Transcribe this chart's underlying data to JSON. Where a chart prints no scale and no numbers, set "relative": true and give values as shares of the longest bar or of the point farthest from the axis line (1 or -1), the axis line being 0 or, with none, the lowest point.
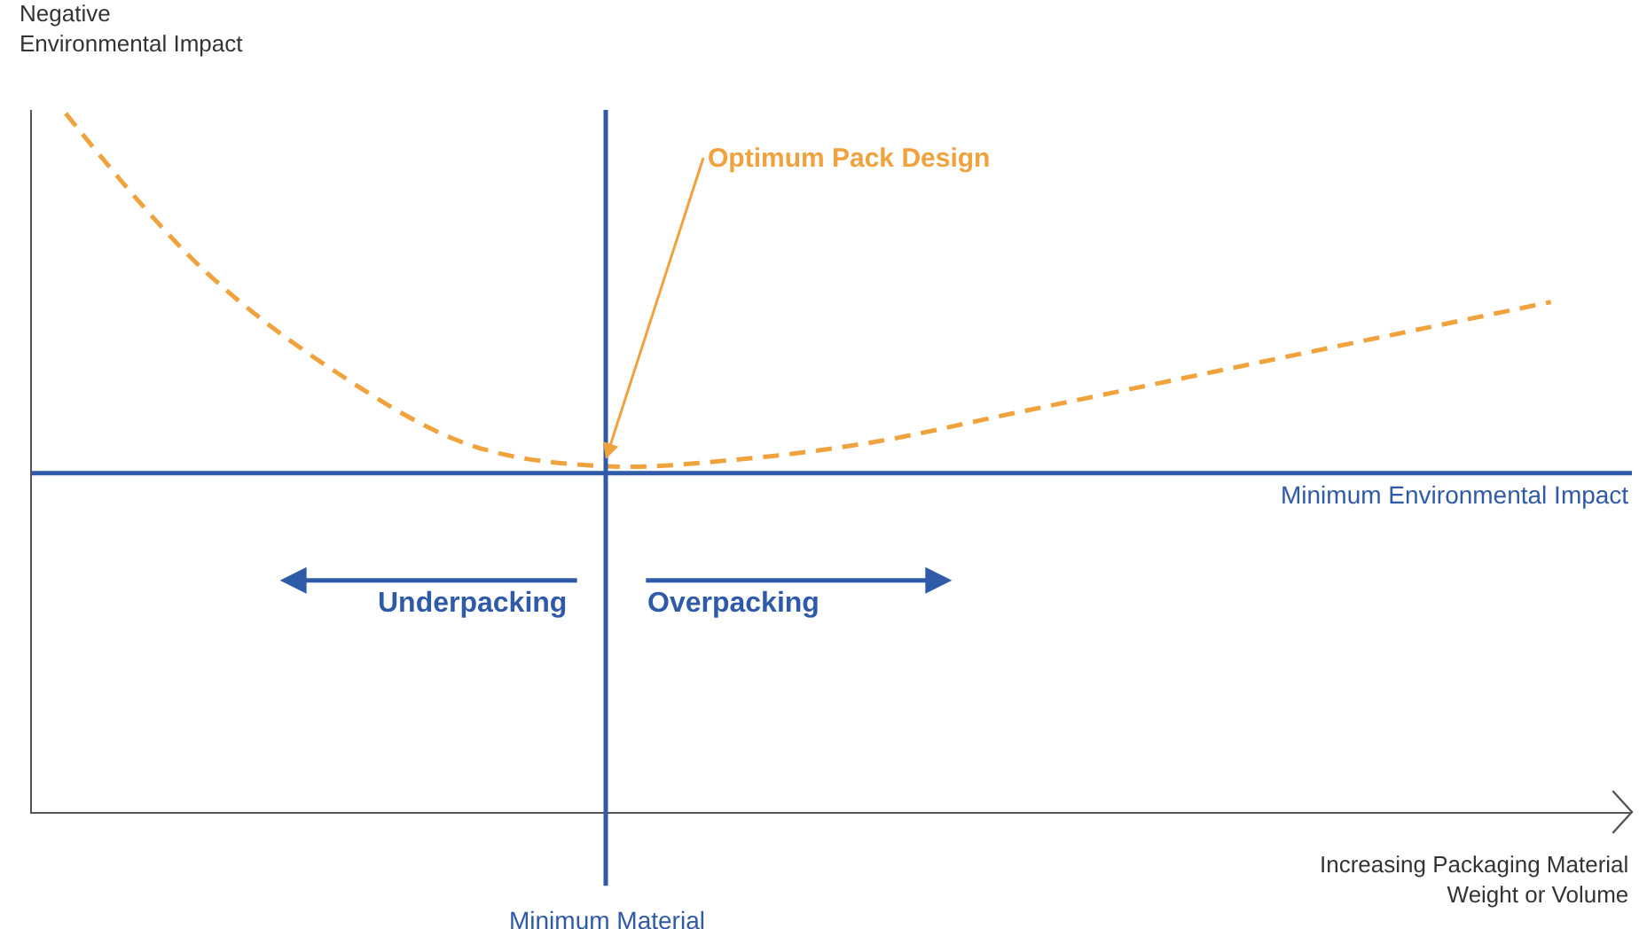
{
  "chart_data": {
    "type": "line",
    "relative": true,
    "xlabel": "Increasing Packaging Material\nWeight or Volume",
    "ylabel": "Negative\nEnvironmental Impact",
    "categories": [
      null,
      null,
      null,
      null,
      null,
      null,
      null,
      null,
      null,
      null,
      null,
      null
    ],
    "series": [
      {
        "color": "#f0a23c",
        "values": [
          1.0,
          0.78,
          0.63,
          0.525,
          0.495,
          0.505,
          0.53,
          0.57,
          0.61,
          0.65,
          0.69,
          0.73
        ]
      }
    ],
    "line_style": "dashed",
    "marker": "none",
    "ref_lines": [
      {
        "axis": "y",
        "value": 0.485,
        "label": "Minimum Environmental Impact",
        "color": "#2f5aa8"
      }
    ],
    "annotations": [
      "Optimum Pack Design",
      "Underpacking",
      "Overpacking",
      "Minimum Material"
    ]
  }
}
